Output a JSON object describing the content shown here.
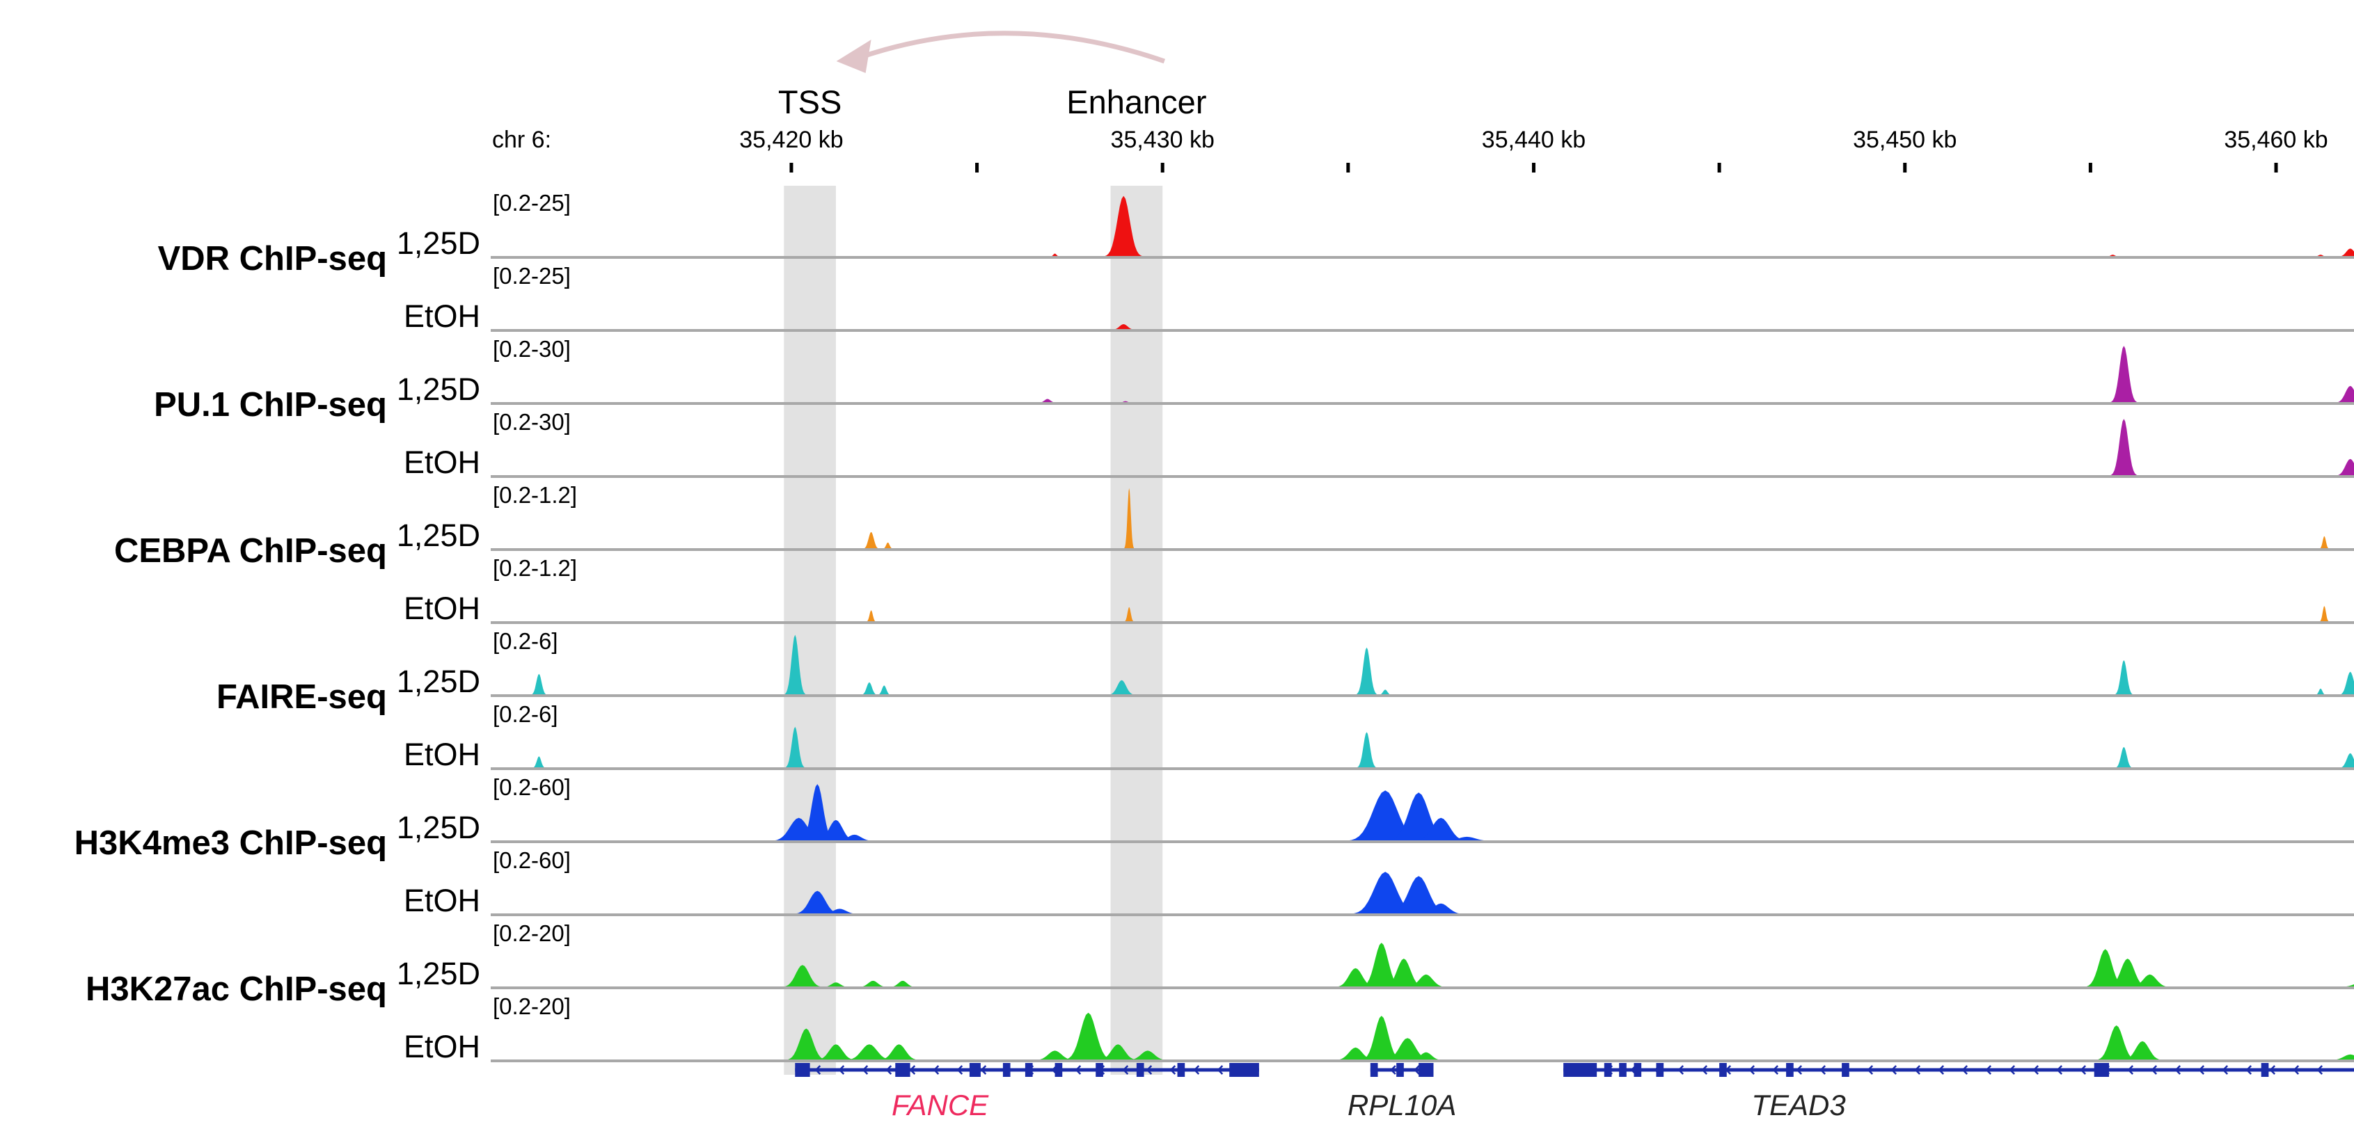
{
  "chart_data": {
    "type": "genome_browser_tracks",
    "chromosome_label": "chr 6:",
    "axis": {
      "unit": "kb",
      "view_range_kb": [
        35411.9,
        35462.1
      ],
      "ticks": [
        {
          "kb": 35420,
          "label": "35,420 kb"
        },
        {
          "kb": 35425,
          "label": ""
        },
        {
          "kb": 35430,
          "label": "35,430 kb"
        },
        {
          "kb": 35435,
          "label": ""
        },
        {
          "kb": 35440,
          "label": "35,440 kb"
        },
        {
          "kb": 35445,
          "label": ""
        },
        {
          "kb": 35450,
          "label": "35,450 kb"
        },
        {
          "kb": 35455,
          "label": ""
        },
        {
          "kb": 35460,
          "label": "35,460 kb"
        }
      ]
    },
    "highlights": [
      {
        "label": "TSS",
        "start_kb": 35419.8,
        "end_kb": 35421.2
      },
      {
        "label": "Enhancer",
        "start_kb": 35428.6,
        "end_kb": 35430.0
      }
    ],
    "arrow": {
      "from": "Enhancer",
      "to": "TSS"
    },
    "groups": [
      {
        "label": "VDR  ChIP-seq",
        "color": "#ee1111",
        "tracks": [
          {
            "condition": "1,25D",
            "range": "[0.2-25]",
            "max": 25,
            "peaks": [
              {
                "kb": 35428.95,
                "h": 24,
                "w": 0.28
              },
              {
                "kb": 35427.1,
                "h": 1.2,
                "w": 0.08
              },
              {
                "kb": 35455.6,
                "h": 0.8,
                "w": 0.1
              },
              {
                "kb": 35461.2,
                "h": 0.8,
                "w": 0.1
              },
              {
                "kb": 35462.0,
                "h": 3.2,
                "w": 0.18
              }
            ]
          },
          {
            "condition": "EtOH",
            "range": "[0.2-25]",
            "max": 25,
            "peaks": [
              {
                "kb": 35428.95,
                "h": 2.2,
                "w": 0.18
              }
            ]
          }
        ]
      },
      {
        "label": "PU.1 ChIP-seq",
        "color": "#aa1fa4",
        "tracks": [
          {
            "condition": "1,25D",
            "range": "[0.2-30]",
            "max": 30,
            "peaks": [
              {
                "kb": 35426.9,
                "h": 1.8,
                "w": 0.14
              },
              {
                "kb": 35429.0,
                "h": 0.8,
                "w": 0.1
              },
              {
                "kb": 35455.9,
                "h": 27,
                "w": 0.2
              },
              {
                "kb": 35462.0,
                "h": 8,
                "w": 0.22
              }
            ]
          },
          {
            "condition": "EtOH",
            "range": "[0.2-30]",
            "max": 30,
            "peaks": [
              {
                "kb": 35455.9,
                "h": 27,
                "w": 0.2
              },
              {
                "kb": 35462.0,
                "h": 8,
                "w": 0.22
              }
            ]
          }
        ]
      },
      {
        "label": "CEBPA ChIP-seq",
        "color": "#f0901a",
        "tracks": [
          {
            "condition": "1,25D",
            "range": "[0.2-1.2]",
            "max": 1.2,
            "peaks": [
              {
                "kb": 35422.15,
                "h": 0.32,
                "w": 0.12
              },
              {
                "kb": 35422.6,
                "h": 0.12,
                "w": 0.08
              },
              {
                "kb": 35429.1,
                "h": 1.15,
                "w": 0.06
              },
              {
                "kb": 35461.3,
                "h": 0.24,
                "w": 0.05
              }
            ]
          },
          {
            "condition": "EtOH",
            "range": "[0.2-1.2]",
            "max": 1.2,
            "peaks": [
              {
                "kb": 35422.15,
                "h": 0.22,
                "w": 0.06
              },
              {
                "kb": 35429.1,
                "h": 0.28,
                "w": 0.05
              },
              {
                "kb": 35461.3,
                "h": 0.3,
                "w": 0.05
              }
            ]
          }
        ]
      },
      {
        "label": "FAIRE-seq",
        "color": "#26c1c1",
        "tracks": [
          {
            "condition": "1,25D",
            "range": "[0.2-6]",
            "max": 6,
            "peaks": [
              {
                "kb": 35413.2,
                "h": 2,
                "w": 0.12
              },
              {
                "kb": 35420.1,
                "h": 5.7,
                "w": 0.16
              },
              {
                "kb": 35422.1,
                "h": 1.2,
                "w": 0.12
              },
              {
                "kb": 35422.5,
                "h": 0.9,
                "w": 0.1
              },
              {
                "kb": 35428.9,
                "h": 1.4,
                "w": 0.2
              },
              {
                "kb": 35435.5,
                "h": 4.5,
                "w": 0.16
              },
              {
                "kb": 35436.0,
                "h": 0.5,
                "w": 0.1
              },
              {
                "kb": 35455.9,
                "h": 3.3,
                "w": 0.14
              },
              {
                "kb": 35461.2,
                "h": 0.6,
                "w": 0.08
              },
              {
                "kb": 35462.0,
                "h": 2.2,
                "w": 0.16
              }
            ]
          },
          {
            "condition": "EtOH",
            "range": "[0.2-6]",
            "max": 6,
            "peaks": [
              {
                "kb": 35413.2,
                "h": 1.1,
                "w": 0.1
              },
              {
                "kb": 35420.1,
                "h": 3.9,
                "w": 0.15
              },
              {
                "kb": 35435.5,
                "h": 3.4,
                "w": 0.15
              },
              {
                "kb": 35455.9,
                "h": 2.0,
                "w": 0.13
              },
              {
                "kb": 35462.0,
                "h": 1.4,
                "w": 0.16
              }
            ]
          }
        ]
      },
      {
        "label": "H3K4me3 ChIP-seq",
        "color": "#0f46ee",
        "tracks": [
          {
            "condition": "1,25D",
            "range": "[0.2-60]",
            "max": 60,
            "peaks": [
              {
                "kb": 35420.2,
                "h": 22,
                "w": 0.4
              },
              {
                "kb": 35420.7,
                "h": 54,
                "w": 0.26
              },
              {
                "kb": 35421.2,
                "h": 20,
                "w": 0.3
              },
              {
                "kb": 35421.7,
                "h": 6,
                "w": 0.3
              },
              {
                "kb": 35436.0,
                "h": 48,
                "w": 0.55
              },
              {
                "kb": 35436.9,
                "h": 46,
                "w": 0.45
              },
              {
                "kb": 35437.5,
                "h": 22,
                "w": 0.4
              },
              {
                "kb": 35438.2,
                "h": 4,
                "w": 0.4
              }
            ]
          },
          {
            "condition": "EtOH",
            "range": "[0.2-60]",
            "max": 60,
            "peaks": [
              {
                "kb": 35420.7,
                "h": 22,
                "w": 0.35
              },
              {
                "kb": 35421.3,
                "h": 5,
                "w": 0.3
              },
              {
                "kb": 35436.0,
                "h": 40,
                "w": 0.5
              },
              {
                "kb": 35436.9,
                "h": 36,
                "w": 0.45
              },
              {
                "kb": 35437.5,
                "h": 10,
                "w": 0.35
              }
            ]
          }
        ]
      },
      {
        "label": "H3K27ac ChIP-seq",
        "color": "#22cc22",
        "tracks": [
          {
            "condition": "1,25D",
            "range": "[0.2-20]",
            "max": 20,
            "peaks": [
              {
                "kb": 35420.3,
                "h": 7,
                "w": 0.3
              },
              {
                "kb": 35421.2,
                "h": 1.5,
                "w": 0.2
              },
              {
                "kb": 35422.2,
                "h": 2,
                "w": 0.22
              },
              {
                "kb": 35423.0,
                "h": 2,
                "w": 0.2
              },
              {
                "kb": 35435.2,
                "h": 6,
                "w": 0.3
              },
              {
                "kb": 35435.9,
                "h": 14,
                "w": 0.3
              },
              {
                "kb": 35436.5,
                "h": 9,
                "w": 0.3
              },
              {
                "kb": 35437.1,
                "h": 4,
                "w": 0.3
              },
              {
                "kb": 35455.4,
                "h": 12,
                "w": 0.3
              },
              {
                "kb": 35456.0,
                "h": 9,
                "w": 0.3
              },
              {
                "kb": 35456.6,
                "h": 4,
                "w": 0.3
              },
              {
                "kb": 35462.4,
                "h": 2,
                "w": 0.4
              }
            ]
          },
          {
            "condition": "EtOH",
            "range": "[0.2-20]",
            "max": 20,
            "peaks": [
              {
                "kb": 35420.4,
                "h": 10,
                "w": 0.3
              },
              {
                "kb": 35421.2,
                "h": 5,
                "w": 0.3
              },
              {
                "kb": 35422.1,
                "h": 5,
                "w": 0.35
              },
              {
                "kb": 35422.9,
                "h": 5,
                "w": 0.3
              },
              {
                "kb": 35427.1,
                "h": 3,
                "w": 0.3
              },
              {
                "kb": 35428.0,
                "h": 15,
                "w": 0.35
              },
              {
                "kb": 35428.8,
                "h": 5,
                "w": 0.3
              },
              {
                "kb": 35429.6,
                "h": 3,
                "w": 0.3
              },
              {
                "kb": 35435.2,
                "h": 4,
                "w": 0.3
              },
              {
                "kb": 35435.9,
                "h": 14,
                "w": 0.3
              },
              {
                "kb": 35436.6,
                "h": 7,
                "w": 0.35
              },
              {
                "kb": 35437.1,
                "h": 2.5,
                "w": 0.25
              },
              {
                "kb": 35455.7,
                "h": 11,
                "w": 0.3
              },
              {
                "kb": 35456.4,
                "h": 6,
                "w": 0.3
              },
              {
                "kb": 35462.0,
                "h": 1.8,
                "w": 0.3
              }
            ]
          }
        ]
      }
    ],
    "genes": [
      {
        "name": "FANCE",
        "color": "#ee2a5e",
        "start_kb": 35420.1,
        "end_kb": 35432.6,
        "exons": [
          [
            35420.1,
            35420.5
          ],
          [
            35422.8,
            35423.2
          ],
          [
            35424.8,
            35425.1
          ],
          [
            35425.7,
            35425.9
          ],
          [
            35426.3,
            35426.5
          ],
          [
            35427.1,
            35427.3
          ],
          [
            35428.2,
            35428.4
          ],
          [
            35429.3,
            35429.5
          ],
          [
            35430.4,
            35430.6
          ],
          [
            35431.8,
            35432.6
          ]
        ]
      },
      {
        "name": "RPL10A",
        "color": "#222222",
        "start_kb": 35435.6,
        "end_kb": 35437.3,
        "exons": [
          [
            35435.6,
            35435.8
          ],
          [
            35436.3,
            35436.5
          ],
          [
            35436.9,
            35437.3
          ]
        ]
      },
      {
        "name": "TEAD3",
        "color": "#222222",
        "start_kb": 35440.8,
        "end_kb": 35462.1,
        "exons": [
          [
            35440.8,
            35441.7
          ],
          [
            35441.9,
            35442.1
          ],
          [
            35442.3,
            35442.5
          ],
          [
            35442.7,
            35442.9
          ],
          [
            35443.3,
            35443.5
          ],
          [
            35445.0,
            35445.2
          ],
          [
            35446.8,
            35447.0
          ],
          [
            35448.3,
            35448.5
          ],
          [
            35455.1,
            35455.5
          ],
          [
            35459.6,
            35459.8
          ]
        ]
      }
    ]
  }
}
